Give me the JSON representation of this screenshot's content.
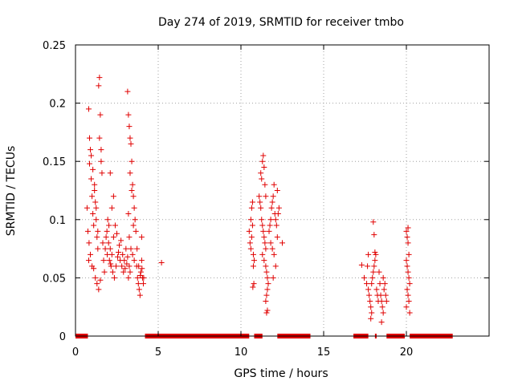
{
  "chart_data": {
    "type": "scatter",
    "title": "Day 274 of 2019, SRMTID for receiver tmbo",
    "xlabel": "GPS time / hours",
    "ylabel": "SRMTID / TECUs",
    "xlim": [
      0,
      25
    ],
    "ylim": [
      0,
      0.25
    ],
    "xticks": [
      0,
      5,
      10,
      15,
      20
    ],
    "yticks": [
      0,
      0.05,
      0.1,
      0.15,
      0.2,
      0.25
    ],
    "xtick_labels": [
      "0",
      "5",
      "10",
      "15",
      "20"
    ],
    "ytick_labels": [
      "0",
      "0.05",
      "0.1",
      "0.15",
      "0.2",
      "0.25"
    ],
    "grid": true,
    "marker": "+",
    "color": "#e00000",
    "series": [
      {
        "name": "SRMTID",
        "points": [
          [
            0.8,
            0.195
          ],
          [
            0.85,
            0.148
          ],
          [
            0.9,
            0.16
          ],
          [
            0.95,
            0.135
          ],
          [
            1.0,
            0.12
          ],
          [
            1.05,
            0.105
          ],
          [
            1.1,
            0.095
          ],
          [
            1.15,
            0.13
          ],
          [
            1.2,
            0.115
          ],
          [
            1.25,
            0.1
          ],
          [
            1.3,
            0.085
          ],
          [
            1.35,
            0.075
          ],
          [
            1.4,
            0.215
          ],
          [
            1.45,
            0.222
          ],
          [
            1.5,
            0.19
          ],
          [
            1.55,
            0.16
          ],
          [
            1.6,
            0.14
          ],
          [
            1.65,
            0.08
          ],
          [
            1.7,
            0.065
          ],
          [
            1.75,
            0.055
          ],
          [
            0.8,
            0.065
          ],
          [
            0.9,
            0.07
          ],
          [
            1.0,
            0.06
          ],
          [
            1.1,
            0.058
          ],
          [
            1.2,
            0.05
          ],
          [
            1.3,
            0.045
          ],
          [
            1.4,
            0.04
          ],
          [
            1.5,
            0.048
          ],
          [
            0.85,
            0.17
          ],
          [
            0.95,
            0.155
          ],
          [
            1.05,
            0.143
          ],
          [
            1.15,
            0.125
          ],
          [
            1.25,
            0.11
          ],
          [
            1.35,
            0.09
          ],
          [
            1.45,
            0.17
          ],
          [
            1.55,
            0.15
          ],
          [
            0.7,
            0.11
          ],
          [
            0.75,
            0.09
          ],
          [
            0.82,
            0.08
          ],
          [
            1.9,
            0.09
          ],
          [
            2.0,
            0.08
          ],
          [
            2.1,
            0.075
          ],
          [
            2.2,
            0.07
          ],
          [
            2.3,
            0.085
          ],
          [
            2.4,
            0.095
          ],
          [
            2.5,
            0.088
          ],
          [
            2.6,
            0.072
          ],
          [
            2.7,
            0.065
          ],
          [
            2.8,
            0.06
          ],
          [
            2.9,
            0.055
          ],
          [
            3.0,
            0.058
          ],
          [
            3.1,
            0.062
          ],
          [
            3.2,
            0.05
          ],
          [
            3.3,
            0.055
          ],
          [
            2.1,
            0.14
          ],
          [
            2.2,
            0.11
          ],
          [
            2.3,
            0.12
          ],
          [
            1.95,
            0.1
          ],
          [
            2.05,
            0.065
          ],
          [
            2.15,
            0.06
          ],
          [
            2.25,
            0.055
          ],
          [
            2.35,
            0.05
          ],
          [
            2.45,
            0.06
          ],
          [
            2.55,
            0.068
          ],
          [
            2.65,
            0.078
          ],
          [
            2.75,
            0.082
          ],
          [
            2.85,
            0.07
          ],
          [
            2.95,
            0.065
          ],
          [
            3.05,
            0.075
          ],
          [
            3.15,
            0.068
          ],
          [
            3.25,
            0.06
          ],
          [
            1.8,
            0.075
          ],
          [
            1.85,
            0.085
          ],
          [
            1.92,
            0.07
          ],
          [
            2.02,
            0.095
          ],
          [
            2.12,
            0.062
          ],
          [
            3.15,
            0.21
          ],
          [
            3.2,
            0.19
          ],
          [
            3.25,
            0.18
          ],
          [
            3.3,
            0.17
          ],
          [
            3.35,
            0.165
          ],
          [
            3.4,
            0.15
          ],
          [
            3.45,
            0.13
          ],
          [
            3.5,
            0.12
          ],
          [
            3.55,
            0.11
          ],
          [
            3.6,
            0.1
          ],
          [
            3.65,
            0.09
          ],
          [
            3.3,
            0.14
          ],
          [
            3.4,
            0.125
          ],
          [
            3.5,
            0.095
          ],
          [
            3.2,
            0.105
          ],
          [
            3.25,
            0.085
          ],
          [
            3.35,
            0.075
          ],
          [
            3.45,
            0.07
          ],
          [
            3.55,
            0.065
          ],
          [
            3.7,
            0.06
          ],
          [
            3.75,
            0.05
          ],
          [
            3.8,
            0.045
          ],
          [
            3.85,
            0.04
          ],
          [
            3.9,
            0.035
          ],
          [
            3.95,
            0.055
          ],
          [
            4.0,
            0.065
          ],
          [
            4.05,
            0.05
          ],
          [
            4.1,
            0.045
          ],
          [
            3.72,
            0.075
          ],
          [
            3.82,
            0.06
          ],
          [
            3.92,
            0.052
          ],
          [
            4.02,
            0.058
          ],
          [
            4.12,
            0.05
          ],
          [
            4.0,
            0.085
          ],
          [
            5.2,
            0.063
          ],
          [
            10.5,
            0.09
          ],
          [
            10.55,
            0.08
          ],
          [
            10.6,
            0.075
          ],
          [
            10.65,
            0.085
          ],
          [
            10.7,
            0.095
          ],
          [
            10.75,
            0.07
          ],
          [
            10.8,
            0.065
          ],
          [
            10.6,
            0.1
          ],
          [
            10.65,
            0.11
          ],
          [
            10.7,
            0.115
          ],
          [
            10.75,
            0.06
          ],
          [
            10.78,
            0.045
          ],
          [
            10.72,
            0.042
          ],
          [
            11.1,
            0.12
          ],
          [
            11.15,
            0.115
          ],
          [
            11.2,
            0.11
          ],
          [
            11.25,
            0.1
          ],
          [
            11.3,
            0.095
          ],
          [
            11.35,
            0.09
          ],
          [
            11.4,
            0.085
          ],
          [
            11.45,
            0.08
          ],
          [
            11.5,
            0.075
          ],
          [
            11.2,
            0.14
          ],
          [
            11.25,
            0.135
          ],
          [
            11.3,
            0.15
          ],
          [
            11.35,
            0.155
          ],
          [
            11.4,
            0.145
          ],
          [
            11.45,
            0.13
          ],
          [
            11.5,
            0.12
          ],
          [
            11.3,
            0.07
          ],
          [
            11.4,
            0.065
          ],
          [
            11.5,
            0.06
          ],
          [
            11.55,
            0.055
          ],
          [
            11.6,
            0.05
          ],
          [
            11.65,
            0.045
          ],
          [
            11.6,
            0.04
          ],
          [
            11.55,
            0.035
          ],
          [
            11.5,
            0.03
          ],
          [
            11.6,
            0.022
          ],
          [
            11.55,
            0.02
          ],
          [
            11.7,
            0.09
          ],
          [
            11.75,
            0.095
          ],
          [
            11.8,
            0.1
          ],
          [
            11.85,
            0.11
          ],
          [
            11.9,
            0.115
          ],
          [
            11.95,
            0.12
          ],
          [
            12.0,
            0.13
          ],
          [
            12.05,
            0.105
          ],
          [
            12.1,
            0.1
          ],
          [
            12.15,
            0.095
          ],
          [
            12.2,
            0.085
          ],
          [
            12.25,
            0.105
          ],
          [
            11.8,
            0.08
          ],
          [
            11.9,
            0.075
          ],
          [
            12.0,
            0.07
          ],
          [
            12.1,
            0.06
          ],
          [
            11.95,
            0.05
          ],
          [
            12.2,
            0.125
          ],
          [
            12.5,
            0.08
          ],
          [
            12.3,
            0.11
          ],
          [
            17.3,
            0.061
          ],
          [
            17.45,
            0.05
          ],
          [
            17.6,
            0.045
          ],
          [
            17.7,
            0.04
          ],
          [
            17.75,
            0.035
          ],
          [
            17.8,
            0.03
          ],
          [
            17.85,
            0.025
          ],
          [
            17.9,
            0.045
          ],
          [
            17.95,
            0.05
          ],
          [
            18.0,
            0.055
          ],
          [
            18.05,
            0.06
          ],
          [
            18.1,
            0.065
          ],
          [
            18.15,
            0.07
          ],
          [
            18.2,
            0.04
          ],
          [
            18.25,
            0.035
          ],
          [
            18.3,
            0.03
          ],
          [
            17.9,
            0.02
          ],
          [
            17.85,
            0.015
          ],
          [
            18.0,
            0.098
          ],
          [
            18.05,
            0.087
          ],
          [
            18.1,
            0.072
          ],
          [
            17.7,
            0.07
          ],
          [
            17.65,
            0.06
          ],
          [
            18.4,
            0.045
          ],
          [
            18.45,
            0.035
          ],
          [
            18.5,
            0.03
          ],
          [
            18.55,
            0.025
          ],
          [
            18.6,
            0.02
          ],
          [
            18.65,
            0.04
          ],
          [
            18.7,
            0.045
          ],
          [
            18.75,
            0.035
          ],
          [
            18.8,
            0.03
          ],
          [
            18.5,
            0.012
          ],
          [
            18.6,
            0.05
          ],
          [
            18.35,
            0.055
          ],
          [
            20.0,
            0.09
          ],
          [
            20.05,
            0.085
          ],
          [
            20.1,
            0.08
          ],
          [
            20.15,
            0.07
          ],
          [
            20.0,
            0.065
          ],
          [
            20.05,
            0.06
          ],
          [
            20.1,
            0.055
          ],
          [
            20.15,
            0.05
          ],
          [
            20.2,
            0.045
          ],
          [
            20.05,
            0.04
          ],
          [
            20.1,
            0.035
          ],
          [
            20.15,
            0.03
          ],
          [
            20.2,
            0.02
          ],
          [
            20.0,
            0.025
          ],
          [
            20.1,
            0.093
          ]
        ]
      }
    ],
    "zero_bar_segments": [
      [
        0.0,
        0.75
      ],
      [
        4.2,
        10.5
      ],
      [
        10.8,
        11.3
      ],
      [
        12.2,
        14.2
      ],
      [
        16.8,
        17.7
      ],
      [
        18.1,
        18.2
      ],
      [
        18.8,
        19.9
      ],
      [
        20.2,
        22.8
      ]
    ]
  }
}
